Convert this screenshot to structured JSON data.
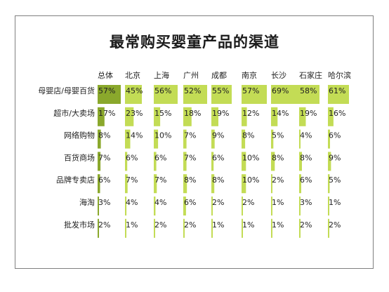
{
  "chart_data": {
    "type": "table",
    "title": "最常购买婴童产品的渠道",
    "columns": [
      "总体",
      "北京",
      "上海",
      "广州",
      "成都",
      "南京",
      "长沙",
      "石家庄",
      "哈尔滨"
    ],
    "rows": [
      {
        "label": "母婴店/母婴百货",
        "values": [
          57,
          45,
          56,
          52,
          55,
          57,
          69,
          58,
          61
        ]
      },
      {
        "label": "超市/大卖场",
        "values": [
          17,
          23,
          15,
          18,
          19,
          12,
          14,
          19,
          16
        ]
      },
      {
        "label": "网络购物",
        "values": [
          8,
          14,
          10,
          7,
          9,
          8,
          5,
          4,
          6
        ]
      },
      {
        "label": "百货商场",
        "values": [
          7,
          6,
          6,
          7,
          6,
          10,
          8,
          8,
          9
        ]
      },
      {
        "label": "品牌专卖店",
        "values": [
          6,
          7,
          7,
          8,
          8,
          10,
          2,
          6,
          5
        ]
      },
      {
        "label": "海淘",
        "values": [
          3,
          4,
          4,
          6,
          2,
          2,
          1,
          3,
          1
        ]
      },
      {
        "label": "批发市场",
        "values": [
          2,
          1,
          2,
          2,
          1,
          1,
          1,
          2,
          2
        ]
      }
    ],
    "unit": "%",
    "colors": {
      "overall_bar": "#8aa82c",
      "city_bar": "#c3dc55",
      "frame": "#7f7f7f",
      "text": "#222222"
    }
  }
}
